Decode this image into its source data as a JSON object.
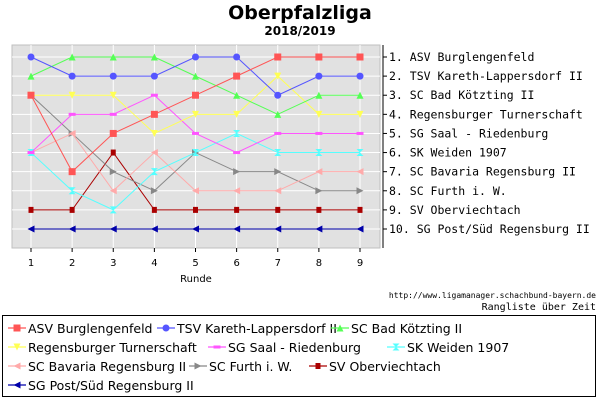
{
  "title": "Oberpfalzliga",
  "subtitle": "2018/2019",
  "footer": {
    "url": "http://www.ligamanager.schachbund-bayern.de",
    "note": "Rangliste über Zeit"
  },
  "chart_data": {
    "type": "line",
    "title": "Oberpfalzliga",
    "subtitle": "2018/2019",
    "xlabel": "Runde",
    "ylabel": "",
    "x": [
      1,
      2,
      3,
      4,
      5,
      6,
      7,
      8,
      9
    ],
    "ylim": [
      10,
      1
    ],
    "y_inverted": true,
    "grid": true,
    "right_labels": [
      "1. ASV Burglengenfeld",
      "2. TSV Kareth-Lappersdorf II",
      "3. SC Bad Kötzting II",
      "4. Regensburger Turnerschaft",
      "5. SG Saal - Riedenburg",
      "6. SK Weiden 1907",
      "7. SC Bavaria Regensburg II",
      "8. SC Furth i. W.",
      "9. SV Oberviechtach",
      "10. SG Post/Süd Regensburg II"
    ],
    "legend_position": "bottom",
    "series": [
      {
        "name": "ASV Burglengenfeld",
        "color": "#ff5555",
        "marker": "square",
        "values": [
          3,
          7,
          5,
          4,
          3,
          2,
          1,
          1,
          1
        ]
      },
      {
        "name": "TSV Kareth-Lappersdorf II",
        "color": "#5555ff",
        "marker": "circle",
        "values": [
          1,
          2,
          2,
          2,
          1,
          1,
          3,
          2,
          2
        ]
      },
      {
        "name": "SC Bad Kötzting II",
        "color": "#55ff55",
        "marker": "triangle-up",
        "values": [
          2,
          1,
          1,
          1,
          2,
          3,
          4,
          3,
          3
        ]
      },
      {
        "name": "Regensburger Turnerschaft",
        "color": "#ffff55",
        "marker": "triangle-down",
        "values": [
          3,
          3,
          3,
          5,
          4,
          4,
          2,
          4,
          4
        ]
      },
      {
        "name": "SG Saal - Riedenburg",
        "color": "#ff55ff",
        "marker": "dash",
        "values": [
          6,
          4,
          4,
          3,
          5,
          6,
          5,
          5,
          5
        ]
      },
      {
        "name": "SK Weiden 1907",
        "color": "#55ffff",
        "marker": "bowtie",
        "values": [
          6,
          8,
          9,
          7,
          6,
          5,
          6,
          6,
          6
        ]
      },
      {
        "name": "SC Bavaria Regensburg II",
        "color": "#ffaaaa",
        "marker": "triangle-left",
        "values": [
          6,
          5,
          8,
          6,
          8,
          8,
          8,
          7,
          7
        ]
      },
      {
        "name": "SC Furth i. W.",
        "color": "#888888",
        "marker": "triangle-right",
        "values": [
          3,
          5,
          7,
          8,
          6,
          7,
          7,
          8,
          8
        ]
      },
      {
        "name": "SV Oberviechtach",
        "color": "#aa0000",
        "marker": "square-small",
        "values": [
          9,
          9,
          6,
          9,
          9,
          9,
          9,
          9,
          9
        ]
      },
      {
        "name": "SG Post/Süd Regensburg II",
        "color": "#0000aa",
        "marker": "triangle-left",
        "values": [
          10,
          10,
          10,
          10,
          10,
          10,
          10,
          10,
          10
        ]
      }
    ]
  }
}
